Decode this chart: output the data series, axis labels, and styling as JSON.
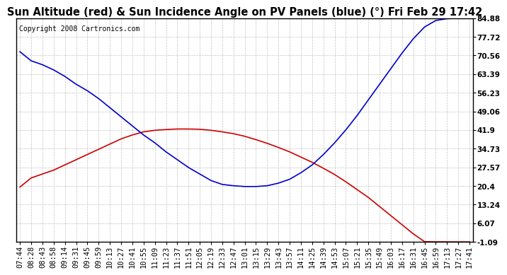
{
  "title": "Sun Altitude (red) & Sun Incidence Angle on PV Panels (blue) (°) Fri Feb 29 17:42",
  "copyright": "Copyright 2008 Cartronics.com",
  "y_ticks": [
    -1.09,
    6.07,
    13.24,
    20.4,
    27.57,
    34.73,
    41.9,
    49.06,
    56.23,
    63.39,
    70.56,
    77.72,
    84.88
  ],
  "x_labels": [
    "07:44",
    "08:28",
    "08:43",
    "08:58",
    "09:14",
    "09:31",
    "09:45",
    "09:59",
    "10:13",
    "10:27",
    "10:41",
    "10:55",
    "11:09",
    "11:23",
    "11:37",
    "11:51",
    "12:05",
    "12:19",
    "12:33",
    "12:47",
    "13:01",
    "13:15",
    "13:29",
    "13:43",
    "13:57",
    "14:11",
    "14:25",
    "14:39",
    "14:53",
    "15:07",
    "15:21",
    "15:35",
    "15:49",
    "16:03",
    "16:17",
    "16:31",
    "16:45",
    "16:59",
    "17:13",
    "17:27",
    "17:41"
  ],
  "red_values": [
    20.0,
    23.5,
    25.0,
    26.5,
    28.5,
    30.5,
    32.5,
    34.5,
    36.5,
    38.5,
    40.0,
    41.2,
    41.8,
    42.1,
    42.3,
    42.3,
    42.2,
    41.8,
    41.2,
    40.5,
    39.5,
    38.2,
    36.8,
    35.2,
    33.5,
    31.5,
    29.5,
    27.2,
    24.8,
    22.0,
    19.0,
    16.0,
    12.5,
    9.0,
    5.5,
    2.0,
    -1.0,
    -1.05,
    -1.07,
    -1.08,
    -1.09
  ],
  "blue_values": [
    72.0,
    68.5,
    67.0,
    65.0,
    62.5,
    59.5,
    57.0,
    54.0,
    50.5,
    47.0,
    43.5,
    40.0,
    37.0,
    33.5,
    30.5,
    27.5,
    25.0,
    22.5,
    21.0,
    20.5,
    20.2,
    20.2,
    20.5,
    21.5,
    23.0,
    25.5,
    28.5,
    32.5,
    37.0,
    42.0,
    47.5,
    53.5,
    59.5,
    65.5,
    71.5,
    77.0,
    81.5,
    84.0,
    84.7,
    84.85,
    84.88
  ],
  "red_color": "#cc0000",
  "blue_color": "#0000cc",
  "bg_color": "#ffffff",
  "grid_color": "#aaaaaa",
  "title_fontsize": 10.5,
  "copyright_fontsize": 7,
  "tick_fontsize": 7.5,
  "ylim": [
    -1.09,
    84.88
  ]
}
